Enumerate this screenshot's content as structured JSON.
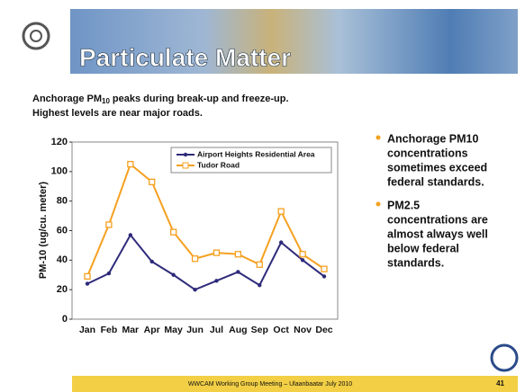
{
  "slide": {
    "title": "Particulate Matter",
    "intro": {
      "line1": [
        "Anchorage PM",
        "10",
        "peaks during break-up and freeze-up."
      ],
      "line2": "Highest levels are near major roads."
    },
    "bullets": [
      [
        "Anchorage PM10",
        "concentrations",
        "sometimes exceed",
        "federal standards."
      ],
      [
        "PM2.5",
        "concentrations are",
        "almost always well",
        "below federal",
        "standards."
      ]
    ],
    "footer": "WWCAM Working Group Meeting – Ulaanbaatar July 2010",
    "page": "41"
  },
  "chart_data": {
    "type": "line",
    "y_label": "PM-10 (ug/cu. meter)",
    "categories": [
      "Jan",
      "Feb",
      "Mar",
      "Apr",
      "May",
      "Jun",
      "Jul",
      "Aug",
      "Sep",
      "Oct",
      "Nov",
      "Dec"
    ],
    "series": [
      {
        "name": "Airport Heights Residential Area",
        "color": "#2e2a7a",
        "values": [
          24,
          31,
          57,
          39,
          30,
          20,
          26,
          32,
          23,
          52,
          40,
          29
        ]
      },
      {
        "name": "Tudor Road",
        "color": "#f5a020",
        "values": [
          29,
          64,
          105,
          93,
          59,
          41,
          45,
          44,
          37,
          73,
          44,
          34
        ]
      }
    ],
    "ylim": [
      0,
      120
    ],
    "yticks": [
      0,
      20,
      40,
      60,
      80,
      100,
      120
    ],
    "grid": false,
    "legend": "top-right"
  }
}
